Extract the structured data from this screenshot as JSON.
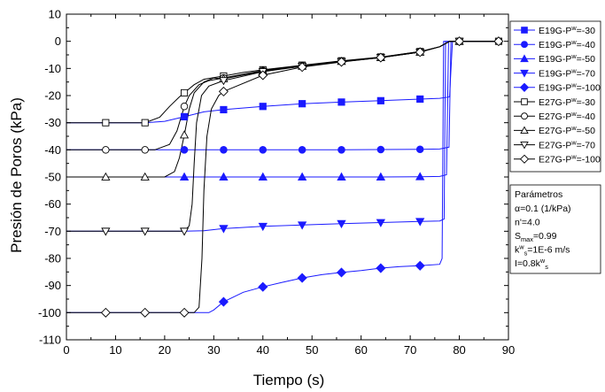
{
  "chart_data": {
    "type": "line",
    "title": "",
    "xlabel": "Tiempo (s)",
    "ylabel": "Presión de Poros (kPa)",
    "xlim": [
      0,
      90
    ],
    "ylim": [
      -110,
      10
    ],
    "xticks": [
      0,
      10,
      20,
      30,
      40,
      50,
      60,
      70,
      80,
      90
    ],
    "yticks": [
      10,
      0,
      -10,
      -20,
      -30,
      -40,
      -50,
      -60,
      -70,
      -80,
      -90,
      -100,
      -110
    ],
    "grid": false,
    "legend_position": "right",
    "series": [
      {
        "name": "E19G-P<sup>w</sup>=-30",
        "marker": "square-filled",
        "color": "#1a1aff",
        "line": [
          [
            0,
            -30
          ],
          [
            16,
            -30
          ],
          [
            20,
            -29.5
          ],
          [
            24,
            -27.8
          ],
          [
            28,
            -26
          ],
          [
            32,
            -25.2
          ],
          [
            40,
            -24
          ],
          [
            48,
            -23
          ],
          [
            56,
            -22.4
          ],
          [
            64,
            -21.9
          ],
          [
            72,
            -21.3
          ],
          [
            76,
            -21
          ],
          [
            78,
            -20.5
          ],
          [
            78.6,
            0
          ],
          [
            80,
            0
          ],
          [
            88,
            0
          ]
        ],
        "markers": [
          [
            24,
            -27.8
          ],
          [
            32,
            -25.2
          ],
          [
            40,
            -24
          ],
          [
            48,
            -23
          ],
          [
            56,
            -22.4
          ],
          [
            64,
            -21.9
          ],
          [
            72,
            -21.3
          ]
        ]
      },
      {
        "name": "E19G-P<sup>w</sup>=-40",
        "marker": "circle-filled",
        "color": "#1a1aff",
        "line": [
          [
            0,
            -40
          ],
          [
            24,
            -40
          ],
          [
            32,
            -40
          ],
          [
            40,
            -40
          ],
          [
            48,
            -40
          ],
          [
            56,
            -40
          ],
          [
            64,
            -39.9
          ],
          [
            72,
            -39.8
          ],
          [
            76,
            -39.7
          ],
          [
            77.9,
            -39
          ],
          [
            78.3,
            0
          ],
          [
            80,
            0
          ],
          [
            88,
            0
          ]
        ],
        "markers": [
          [
            24,
            -40
          ],
          [
            32,
            -40
          ],
          [
            40,
            -40
          ],
          [
            48,
            -40
          ],
          [
            56,
            -40
          ],
          [
            64,
            -39.9
          ],
          [
            72,
            -39.8
          ]
        ]
      },
      {
        "name": "E19G-P<sup>w</sup>=-50",
        "marker": "triangle-up-filled",
        "color": "#1a1aff",
        "line": [
          [
            0,
            -50
          ],
          [
            24,
            -50
          ],
          [
            32,
            -50
          ],
          [
            40,
            -50
          ],
          [
            48,
            -50
          ],
          [
            56,
            -50
          ],
          [
            64,
            -50
          ],
          [
            72,
            -49.9
          ],
          [
            76,
            -49.8
          ],
          [
            77.4,
            -49.2
          ],
          [
            77.8,
            0
          ],
          [
            80,
            0
          ],
          [
            88,
            0
          ]
        ],
        "markers": [
          [
            24,
            -50
          ],
          [
            32,
            -50
          ],
          [
            40,
            -50
          ],
          [
            48,
            -50
          ],
          [
            56,
            -50
          ],
          [
            64,
            -50
          ],
          [
            72,
            -49.9
          ]
        ]
      },
      {
        "name": "E19G-P<sup>w</sup>=-70",
        "marker": "triangle-down-filled",
        "color": "#1a1aff",
        "line": [
          [
            0,
            -70
          ],
          [
            24,
            -70
          ],
          [
            28,
            -69.8
          ],
          [
            32,
            -69
          ],
          [
            40,
            -68.2
          ],
          [
            48,
            -67.7
          ],
          [
            56,
            -67.2
          ],
          [
            64,
            -66.8
          ],
          [
            72,
            -66.4
          ],
          [
            76,
            -66.2
          ],
          [
            76.9,
            -65.5
          ],
          [
            77.2,
            0
          ],
          [
            80,
            0
          ],
          [
            88,
            0
          ]
        ],
        "markers": [
          [
            32,
            -69
          ],
          [
            40,
            -68.2
          ],
          [
            48,
            -67.7
          ],
          [
            56,
            -67.2
          ],
          [
            64,
            -66.8
          ],
          [
            72,
            -66.4
          ]
        ]
      },
      {
        "name": "E19G-P<sup>w</sup>=-100",
        "marker": "diamond-filled",
        "color": "#1a1aff",
        "line": [
          [
            0,
            -100
          ],
          [
            24,
            -100
          ],
          [
            29,
            -100
          ],
          [
            30,
            -99
          ],
          [
            32,
            -96
          ],
          [
            36,
            -92.5
          ],
          [
            40,
            -90.5
          ],
          [
            44,
            -88.8
          ],
          [
            48,
            -87.2
          ],
          [
            52,
            -86
          ],
          [
            56,
            -85.2
          ],
          [
            60,
            -84.5
          ],
          [
            64,
            -83.6
          ],
          [
            68,
            -83
          ],
          [
            72,
            -82.7
          ],
          [
            76,
            -82.2
          ],
          [
            76.5,
            -80
          ],
          [
            76.8,
            0
          ],
          [
            80,
            0
          ],
          [
            88,
            0
          ]
        ],
        "markers": [
          [
            32,
            -96
          ],
          [
            40,
            -90.5
          ],
          [
            48,
            -87.2
          ],
          [
            56,
            -85.2
          ],
          [
            64,
            -83.6
          ],
          [
            72,
            -82.7
          ]
        ]
      },
      {
        "name": "E27G-P<sup>w</sup>=-30",
        "marker": "square-open",
        "color": "#000000",
        "line": [
          [
            0,
            -30
          ],
          [
            16,
            -30
          ],
          [
            19,
            -28
          ],
          [
            21,
            -24
          ],
          [
            23,
            -20.5
          ],
          [
            24,
            -19
          ],
          [
            26,
            -16
          ],
          [
            28,
            -14
          ],
          [
            32,
            -12.8
          ],
          [
            36,
            -11.5
          ],
          [
            40,
            -10.5
          ],
          [
            48,
            -8.8
          ],
          [
            56,
            -7.2
          ],
          [
            64,
            -5.8
          ],
          [
            72,
            -3.8
          ],
          [
            76,
            -2
          ],
          [
            78,
            0
          ],
          [
            80,
            0
          ],
          [
            88,
            0
          ]
        ],
        "markers": [
          [
            8,
            -30
          ],
          [
            16,
            -30
          ],
          [
            24,
            -19
          ],
          [
            32,
            -12.8
          ],
          [
            40,
            -10.5
          ],
          [
            48,
            -8.8
          ],
          [
            56,
            -7.2
          ],
          [
            64,
            -5.8
          ],
          [
            72,
            -3.8
          ],
          [
            80,
            0
          ],
          [
            88,
            0
          ]
        ]
      },
      {
        "name": "E27G-P<sup>w</sup>=-40",
        "marker": "circle-open",
        "color": "#000000",
        "line": [
          [
            0,
            -40
          ],
          [
            18,
            -40
          ],
          [
            21,
            -38
          ],
          [
            22.5,
            -33
          ],
          [
            24,
            -24
          ],
          [
            25,
            -20
          ],
          [
            27,
            -16
          ],
          [
            29,
            -14.5
          ],
          [
            32,
            -13.5
          ],
          [
            40,
            -10.8
          ],
          [
            48,
            -9
          ],
          [
            56,
            -7.3
          ],
          [
            64,
            -5.9
          ],
          [
            72,
            -3.8
          ],
          [
            76,
            -2
          ],
          [
            78,
            0
          ],
          [
            80,
            0
          ],
          [
            88,
            0
          ]
        ],
        "markers": [
          [
            8,
            -40
          ],
          [
            16,
            -40
          ],
          [
            24,
            -24
          ],
          [
            32,
            -13.5
          ],
          [
            40,
            -10.8
          ],
          [
            48,
            -9
          ],
          [
            56,
            -7.3
          ],
          [
            64,
            -5.9
          ],
          [
            72,
            -3.8
          ],
          [
            80,
            0
          ]
        ]
      },
      {
        "name": "E27G-P<sup>w</sup>=-50",
        "marker": "triangle-up-open",
        "color": "#000000",
        "line": [
          [
            0,
            -50
          ],
          [
            20,
            -50
          ],
          [
            22,
            -48
          ],
          [
            23,
            -43
          ],
          [
            24,
            -34.5
          ],
          [
            25,
            -25
          ],
          [
            26,
            -19
          ],
          [
            28,
            -15
          ],
          [
            30,
            -13.5
          ],
          [
            32,
            -13.8
          ],
          [
            40,
            -11
          ],
          [
            48,
            -9.2
          ],
          [
            56,
            -7.4
          ],
          [
            64,
            -6
          ],
          [
            72,
            -4
          ],
          [
            76,
            -2
          ],
          [
            78,
            0
          ],
          [
            80,
            0
          ],
          [
            88,
            0
          ]
        ],
        "markers": [
          [
            8,
            -50
          ],
          [
            16,
            -50
          ],
          [
            24,
            -34.5
          ],
          [
            32,
            -13.8
          ],
          [
            40,
            -11
          ],
          [
            48,
            -9.2
          ],
          [
            56,
            -7.4
          ],
          [
            64,
            -6
          ],
          [
            72,
            -4
          ],
          [
            80,
            0
          ]
        ]
      },
      {
        "name": "E27G-P<sup>w</sup>=-70",
        "marker": "triangle-down-open",
        "color": "#000000",
        "line": [
          [
            0,
            -70
          ],
          [
            24,
            -70
          ],
          [
            25,
            -68
          ],
          [
            25.6,
            -60
          ],
          [
            26,
            -45
          ],
          [
            26.5,
            -30
          ],
          [
            27.5,
            -20
          ],
          [
            29,
            -16.5
          ],
          [
            32,
            -14.5
          ],
          [
            40,
            -11.2
          ],
          [
            48,
            -9.2
          ],
          [
            56,
            -7.5
          ],
          [
            64,
            -6
          ],
          [
            72,
            -4
          ],
          [
            76,
            -2
          ],
          [
            78,
            0
          ],
          [
            80,
            0
          ],
          [
            88,
            0
          ]
        ],
        "markers": [
          [
            8,
            -70
          ],
          [
            16,
            -70
          ],
          [
            24,
            -70
          ],
          [
            32,
            -14.5
          ],
          [
            40,
            -11.2
          ],
          [
            48,
            -9.2
          ],
          [
            56,
            -7.5
          ],
          [
            64,
            -6
          ],
          [
            72,
            -4
          ],
          [
            80,
            0
          ]
        ]
      },
      {
        "name": "E27G-P<sup>w</sup>=-100",
        "marker": "diamond-open",
        "color": "#000000",
        "line": [
          [
            0,
            -100
          ],
          [
            26,
            -100
          ],
          [
            27,
            -98
          ],
          [
            27.6,
            -80
          ],
          [
            28,
            -55
          ],
          [
            28.6,
            -35
          ],
          [
            29.5,
            -25
          ],
          [
            31,
            -20
          ],
          [
            32,
            -18.5
          ],
          [
            40,
            -12.5
          ],
          [
            48,
            -9.5
          ],
          [
            56,
            -7.6
          ],
          [
            64,
            -6
          ],
          [
            72,
            -4
          ],
          [
            76,
            -2
          ],
          [
            78,
            0
          ],
          [
            80,
            0
          ],
          [
            88,
            0
          ]
        ],
        "markers": [
          [
            8,
            -100
          ],
          [
            16,
            -100
          ],
          [
            24,
            -100
          ],
          [
            32,
            -18.5
          ],
          [
            40,
            -12.5
          ],
          [
            48,
            -9.5
          ],
          [
            56,
            -7.6
          ],
          [
            64,
            -6
          ],
          [
            72,
            -4
          ],
          [
            80,
            0
          ],
          [
            88,
            0
          ]
        ]
      }
    ],
    "annotation": {
      "title": "Parámetros",
      "lines": [
        "α=0.1 (1/kPa)",
        "n'=4.0",
        "S<sub>max</sub>=0.99",
        "k<sup>w</sup><sub>s</sub>=1E-6 m/s",
        "I=0.8k<sup>w</sup><sub>s</sub>"
      ]
    }
  }
}
